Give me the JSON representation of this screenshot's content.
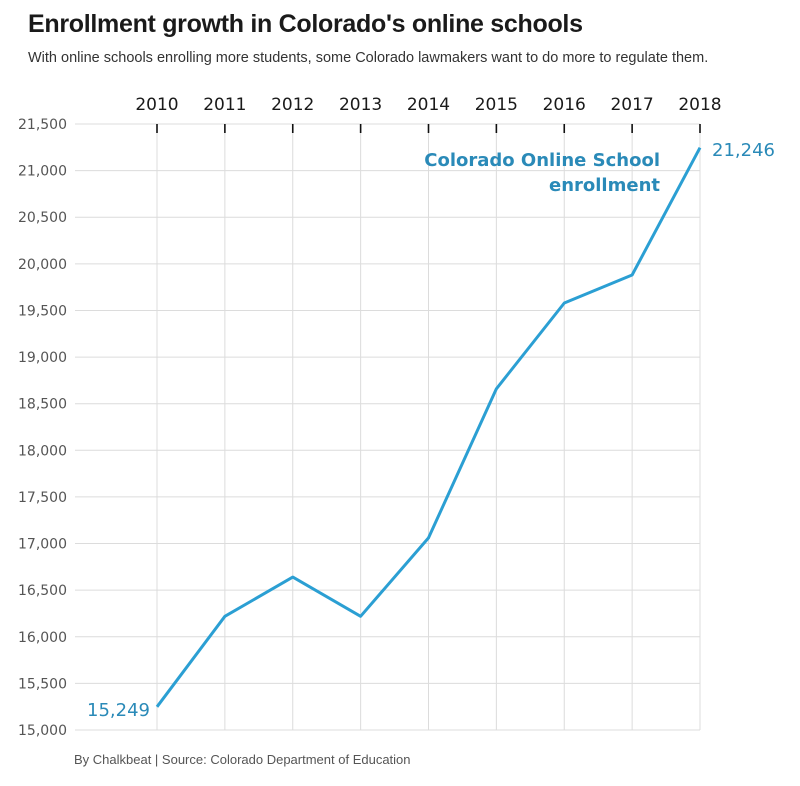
{
  "header": {
    "title": "Enrollment growth in Colorado's online schools",
    "subtitle": "With online schools enrolling more students, some Colorado lawmakers want to do more to regulate them."
  },
  "footer": {
    "source": "By Chalkbeat | Source: Colorado Department of Education"
  },
  "chart_data": {
    "type": "line",
    "title": "Enrollment growth in Colorado's online schools",
    "subtitle": "With online schools enrolling more students, some Colorado lawmakers want to do more to regulate them.",
    "xlabel": "",
    "ylabel": "",
    "x": [
      "2010",
      "2011",
      "2012",
      "2013",
      "2014",
      "2015",
      "2016",
      "2017",
      "2018"
    ],
    "series": [
      {
        "name": "Colorado Online School enrollment",
        "values": [
          15249,
          16220,
          16640,
          16220,
          17060,
          18660,
          19580,
          19880,
          21246
        ],
        "color": "#2b9fd3"
      }
    ],
    "ylim": [
      15000,
      21500
    ],
    "yticks": [
      15000,
      15500,
      16000,
      16500,
      17000,
      17500,
      18000,
      18500,
      19000,
      19500,
      20000,
      20500,
      21000,
      21500
    ],
    "ytick_labels": [
      "15,000",
      "15,500",
      "16,000",
      "16,500",
      "17,000",
      "17,500",
      "18,000",
      "18,500",
      "19,000",
      "19,500",
      "20,000",
      "20,500",
      "21,000",
      "21,500"
    ],
    "xaxis_position": "top",
    "grid": true,
    "annotations": [
      {
        "text_lines": [
          "Colorado Online School",
          "enrollment"
        ],
        "role": "series-label"
      },
      {
        "text": "15,249",
        "point": "2010"
      },
      {
        "text": "21,246",
        "point": "2018"
      }
    ]
  }
}
